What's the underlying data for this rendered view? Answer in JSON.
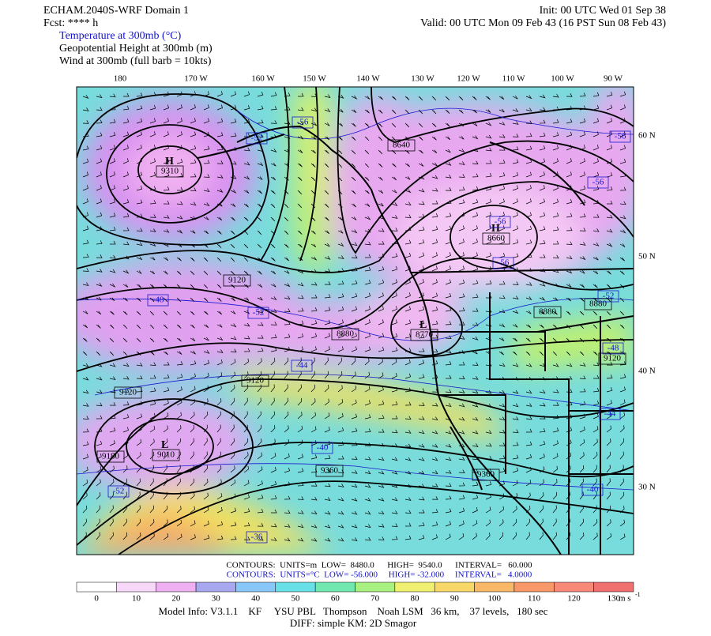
{
  "header": {
    "model": "ECHAM.2040S-WRF Domain 1",
    "fcst": "Fcst: **** h",
    "init": "Init: 00 UTC Wed 01 Sep 38",
    "valid": "Valid: 00 UTC Mon 09 Feb 43 (16 PST Sun 08 Feb 43)",
    "fields": [
      "Temperature at 300mb (°C)",
      "Geopotential Height at 300mb (m)",
      "Wind at 300mb (full barb = 10kts)"
    ]
  },
  "map": {
    "lon_labels": [
      "180",
      "170 W",
      "160 W",
      "150 W",
      "140 W",
      "130 W",
      "120 W",
      "110 W",
      "100 W",
      "90 W"
    ],
    "lat_labels": [
      "60 N",
      "50 N",
      "40 N",
      "30 N"
    ],
    "centers": [
      {
        "mark": "H",
        "label": "9310"
      },
      {
        "mark": "H",
        "label": "8660"
      },
      {
        "mark": "L",
        "label": "8770"
      },
      {
        "mark": "L",
        "label": "9010"
      }
    ],
    "height_labels": [
      "9120",
      "8640",
      "8880",
      "9120",
      "9120",
      "9360",
      "9360",
      "9120",
      "8880",
      "8880",
      "9180"
    ],
    "temp_labels": [
      "-56",
      "-52",
      "-56",
      "-56",
      "-56",
      "-56",
      "-48",
      "-52",
      "-44",
      "-52",
      "-48",
      "-40",
      "-44",
      "-40",
      "-36",
      "-52"
    ]
  },
  "footer": {
    "contours_height": "CONTOURS:  UNITS=m  LOW=  8480.0      HIGH=  9540.0      INTERVAL=   60.000",
    "contours_temp": "CONTOURS:  UNITS=°C  LOW= -56.000     HIGH= -32.000     INTERVAL=   4.0000",
    "model_info": "Model Info: V3.1.1    KF     YSU PBL   Thompson    Noah LSM   36 km,    37 levels,   180 sec",
    "diff": "DIFF: simple KM: 2D Smagor"
  },
  "colorbar": {
    "ticks": [
      0,
      10,
      20,
      30,
      40,
      50,
      60,
      70,
      80,
      90,
      100,
      110,
      120,
      130
    ],
    "units": "m s",
    "units_exp": "-1",
    "colors": [
      "#ffffff",
      "#f8d8f8",
      "#eeb0f0",
      "#a8a8f0",
      "#88c8f8",
      "#68e0e8",
      "#70e8b0",
      "#a8f080",
      "#f0f070",
      "#f8d868",
      "#f8b868",
      "#f89868",
      "#f88878",
      "#f07070"
    ]
  }
}
